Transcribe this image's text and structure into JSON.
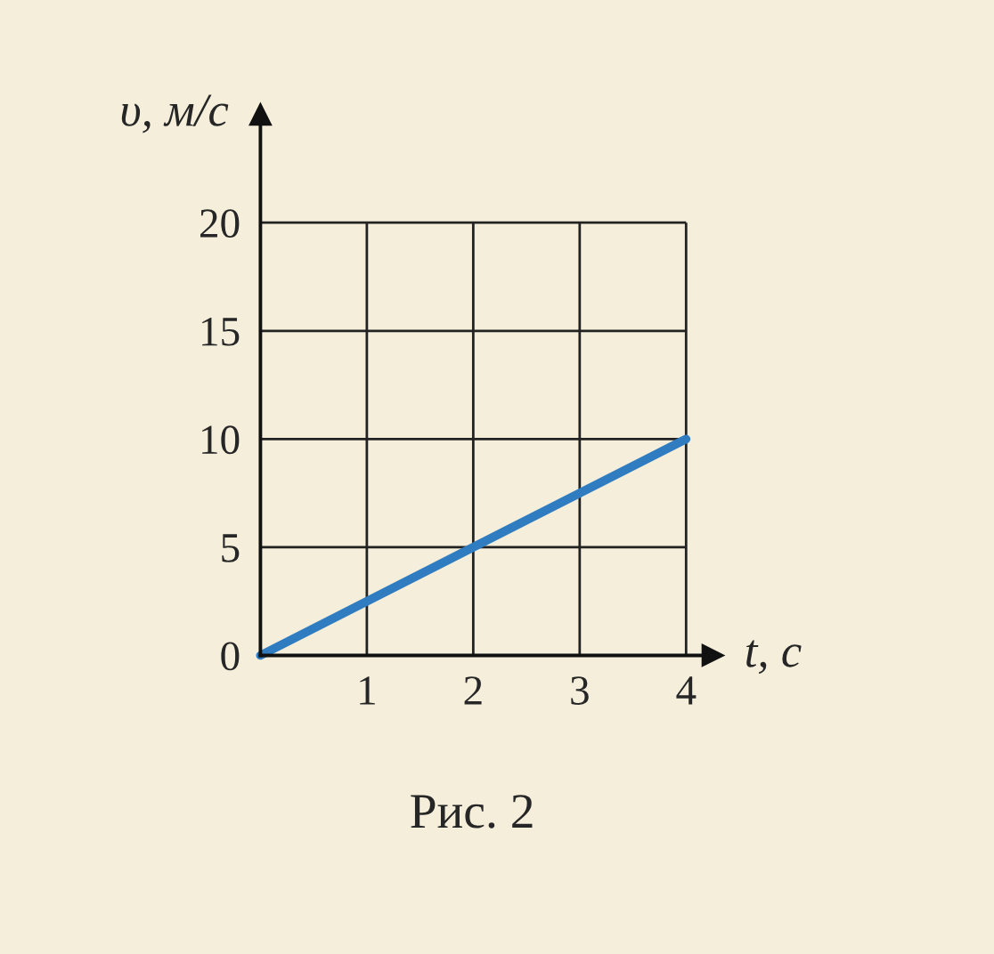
{
  "chart_data": {
    "type": "line",
    "x": [
      0,
      4
    ],
    "series": [
      {
        "color": "#2f7cc0",
        "values": [
          0,
          10
        ]
      }
    ],
    "xlim": [
      0,
      4.25
    ],
    "ylim": [
      0,
      25
    ],
    "xticks": [
      {
        "value": 0,
        "label": null
      },
      1,
      2,
      3,
      4
    ],
    "yticks": [
      0,
      5,
      10,
      15,
      20
    ],
    "xlabel": "t, с",
    "ylabel": "υ, м/с",
    "grid": true,
    "annotations": [
      "Рис. 2"
    ]
  }
}
